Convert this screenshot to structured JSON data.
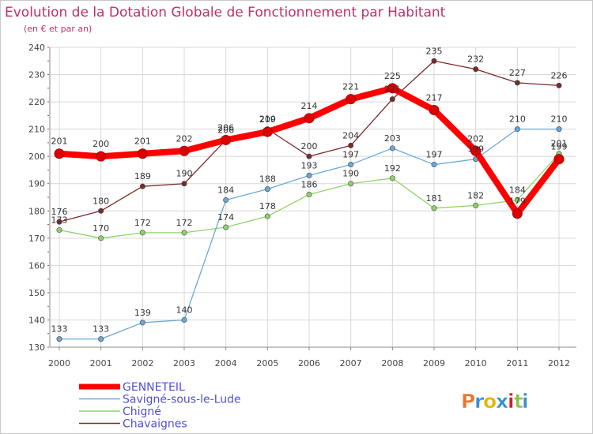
{
  "title": "Evolution de la Dotation Globale de Fonctionnement par Habitant",
  "subtitle": "(en € et par an)",
  "logo": {
    "text": "Proxiti",
    "colors": [
      "#e8772e",
      "#3a8fd0",
      "#e8b400",
      "#3a8fd0",
      "#cc2222",
      "#8bc34a",
      "#3a8fd0"
    ]
  },
  "chart_data": {
    "type": "line",
    "categories": [
      "2000",
      "2001",
      "2002",
      "2003",
      "2004",
      "2005",
      "2006",
      "2007",
      "2008",
      "2009",
      "2010",
      "2011",
      "2012"
    ],
    "y_ticks": [
      130,
      140,
      150,
      160,
      170,
      180,
      190,
      200,
      210,
      220,
      230,
      240
    ],
    "ylim": [
      130,
      240
    ],
    "grid": true,
    "legend_position": "bottom-left",
    "series": [
      {
        "name": "Chavaignes",
        "color": "#7a2a2a",
        "width": 1.3,
        "marker": 3.2,
        "values": [
          176,
          180,
          189,
          190,
          206,
          210,
          200,
          204,
          221,
          235,
          232,
          227,
          226
        ]
      },
      {
        "name": "Chigné",
        "color": "#8ed36a",
        "width": 1.3,
        "marker": 3.2,
        "values": [
          173,
          170,
          172,
          172,
          174,
          178,
          186,
          190,
          192,
          181,
          182,
          184,
          201
        ]
      },
      {
        "name": "Savigné-sous-le-Lude",
        "color": "#6aa8d8",
        "width": 1.3,
        "marker": 3.2,
        "values": [
          133,
          133,
          139,
          140,
          184,
          188,
          193,
          197,
          203,
          197,
          199,
          210,
          210
        ]
      },
      {
        "name": "GENNETEIL",
        "color": "#ff0000",
        "width": 8,
        "marker": 6,
        "values": [
          201,
          200,
          201,
          202,
          206,
          209,
          214,
          221,
          225,
          217,
          202,
          179,
          199
        ]
      }
    ],
    "legend_order": [
      "GENNETEIL",
      "Savigné-sous-le-Lude",
      "Chigné",
      "Chavaignes"
    ],
    "label_values": {
      "GENNETEIL": [
        "201",
        "200",
        "201",
        "202",
        "206",
        "209",
        "214",
        "221",
        "225",
        "217",
        "202",
        "179",
        "199"
      ],
      "Savigné-sous-le-Lude": [
        "133",
        "133",
        "139",
        "140",
        "184",
        "188",
        "193",
        "197",
        "203",
        "197",
        "199",
        "210",
        "210"
      ],
      "Chigné": [
        "173",
        "170",
        "172",
        "172",
        "174",
        "178",
        "186",
        "190",
        "192",
        "181",
        "182",
        "184",
        "201"
      ],
      "Chavaignes": [
        "176",
        "180",
        "189",
        "190",
        "206",
        "210",
        "200",
        "204",
        "221",
        "235",
        "232",
        "227",
        "226"
      ]
    }
  }
}
